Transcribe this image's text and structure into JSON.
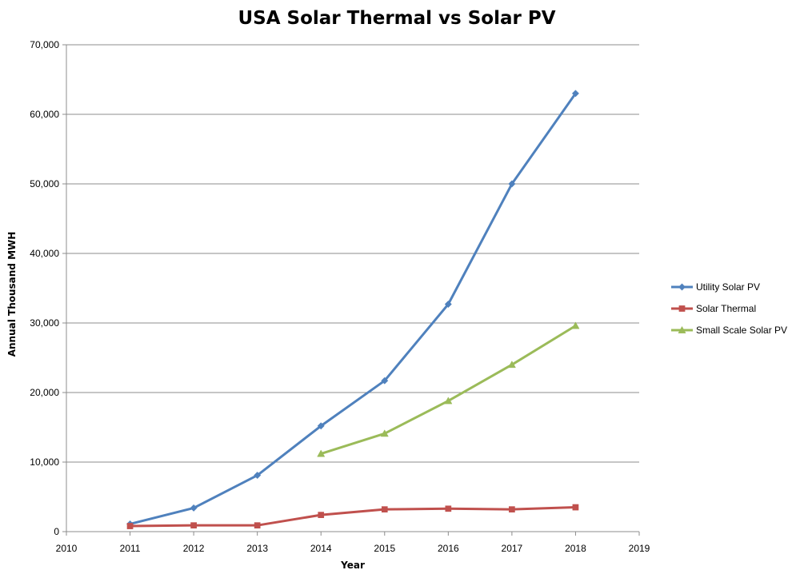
{
  "chart_data": {
    "type": "line",
    "title": "USA Solar Thermal vs Solar PV",
    "xlabel": "Year",
    "ylabel": "Annual Thousand MWH",
    "xlim": [
      2010,
      2019
    ],
    "ylim": [
      0,
      70000
    ],
    "x_ticks": [
      2010,
      2011,
      2012,
      2013,
      2014,
      2015,
      2016,
      2017,
      2018,
      2019
    ],
    "y_ticks": [
      0,
      10000,
      20000,
      30000,
      40000,
      50000,
      60000,
      70000
    ],
    "x_tick_labels": [
      "2010",
      "2011",
      "2012",
      "2013",
      "2014",
      "2015",
      "2016",
      "2017",
      "2018",
      "2019"
    ],
    "y_tick_labels": [
      "0",
      "10,000",
      "20,000",
      "30,000",
      "40,000",
      "50,000",
      "60,000",
      "70,000"
    ],
    "grid": "horizontal",
    "legend_position": "right",
    "series": [
      {
        "name": "Utility Solar PV",
        "color": "#4F81BD",
        "marker": "diamond",
        "x": [
          2011,
          2012,
          2013,
          2014,
          2015,
          2016,
          2017,
          2018
        ],
        "values": [
          1100,
          3400,
          8100,
          15200,
          21700,
          32700,
          50000,
          63000
        ]
      },
      {
        "name": "Solar Thermal",
        "color": "#C0504D",
        "marker": "square",
        "x": [
          2011,
          2012,
          2013,
          2014,
          2015,
          2016,
          2017,
          2018
        ],
        "values": [
          800,
          900,
          900,
          2400,
          3200,
          3300,
          3200,
          3500
        ]
      },
      {
        "name": "Small Scale Solar PV",
        "color": "#9BBB59",
        "marker": "triangle",
        "x": [
          2014,
          2015,
          2016,
          2017,
          2018
        ],
        "values": [
          11200,
          14100,
          18800,
          24000,
          29600
        ]
      }
    ]
  }
}
